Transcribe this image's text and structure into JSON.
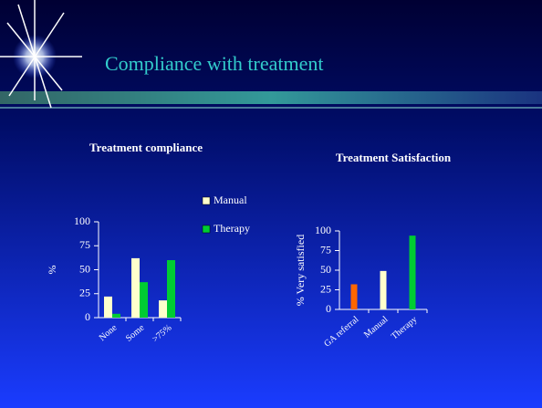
{
  "title": "Compliance with treatment",
  "chart_data": [
    {
      "type": "bar",
      "title": "Treatment compliance",
      "y_label": "%",
      "categories": [
        "None",
        "Some",
        ">75%"
      ],
      "series": [
        {
          "name": "Manual",
          "color": "#ffffcc",
          "values": [
            22,
            62,
            18
          ]
        },
        {
          "name": "Therapy",
          "color": "#00cc33",
          "values": [
            4,
            37,
            60
          ]
        }
      ],
      "ylim": [
        0,
        100
      ],
      "yticks": [
        0,
        25,
        50,
        75,
        100
      ],
      "legend": "right"
    },
    {
      "type": "bar",
      "title": "Treatment Satisfaction",
      "y_label": "% Very satisfied",
      "categories": [
        "GA referral",
        "Manual",
        "Therapy"
      ],
      "values": [
        32,
        49,
        94
      ],
      "colors": [
        "#ff6600",
        "#ffffcc",
        "#00cc33"
      ],
      "ylim": [
        0,
        100
      ],
      "yticks": [
        0,
        25,
        50,
        75,
        100
      ]
    }
  ]
}
